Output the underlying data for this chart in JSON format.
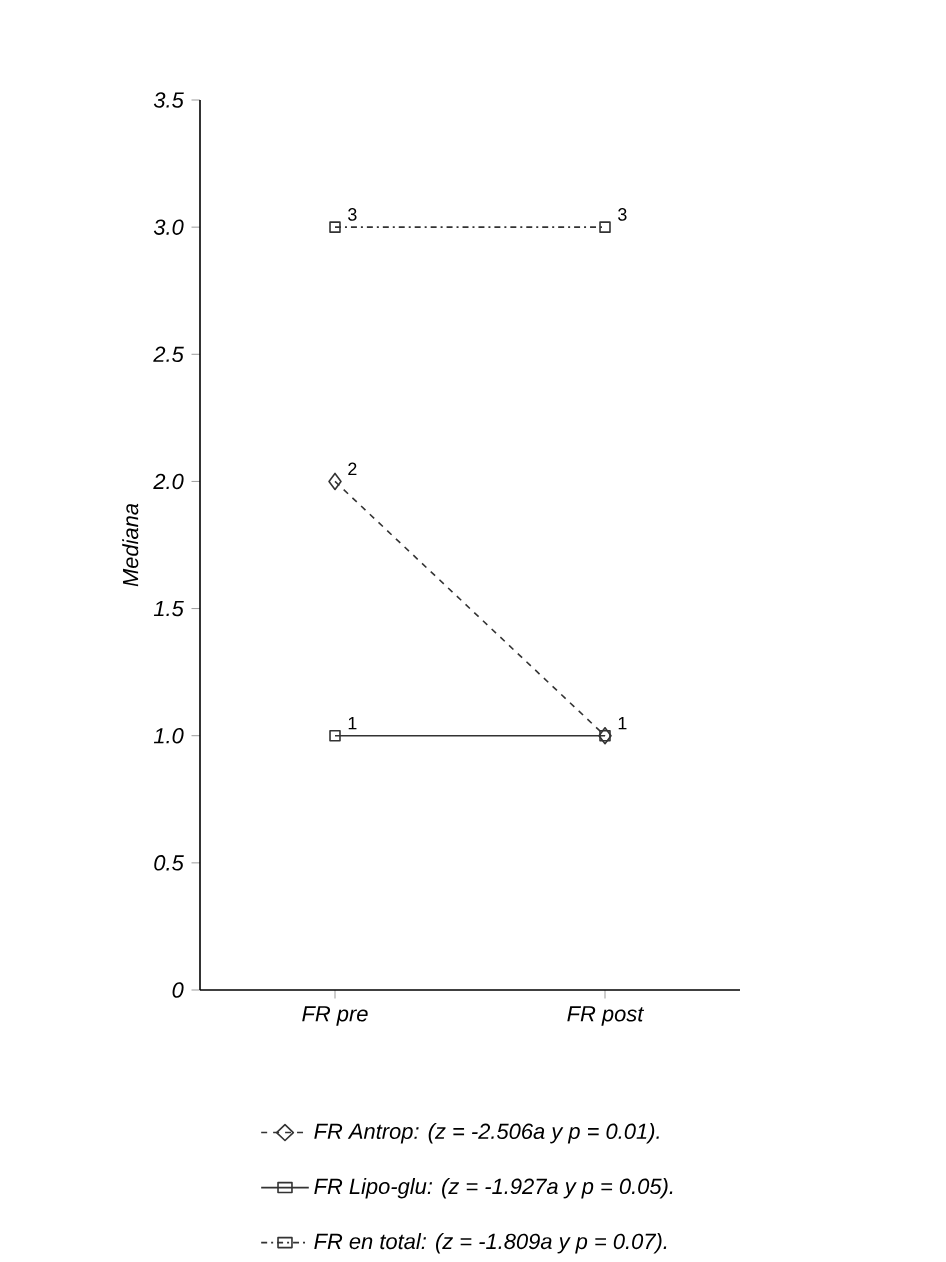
{
  "chart_data": {
    "type": "line",
    "ylabel": "Mediana",
    "categories": [
      "FR pre",
      "FR post"
    ],
    "ylim": [
      0,
      3.5
    ],
    "yticks": [
      0,
      0.5,
      {
        "value": 1,
        "label": "1.0"
      },
      1.5,
      {
        "value": 2,
        "label": "2.0"
      },
      2.5,
      {
        "value": 3,
        "label": "3.0"
      },
      3.5
    ],
    "legend": "bottom",
    "grid": false,
    "series": [
      {
        "name": "FR Antrop: (z = -2.506a y p = 0.01).",
        "color": "#333333",
        "values": [
          2,
          1
        ],
        "value_labels": [
          "2",
          "1"
        ],
        "marker": "diamond",
        "line_style": "dashed"
      },
      {
        "name": "FR Lipo-glu: (z = -1.927a y p = 0.05).",
        "color": "#333333",
        "values": [
          1,
          1
        ],
        "value_labels": [
          "1",
          null
        ],
        "marker": "square",
        "line_style": "solid"
      },
      {
        "name": "FR en total: (z = -1.809a y p = 0.07).",
        "color": "#333333",
        "values": [
          3,
          3
        ],
        "value_labels": [
          "3",
          "3"
        ],
        "marker": "square",
        "line_style": "dotted"
      }
    ]
  }
}
